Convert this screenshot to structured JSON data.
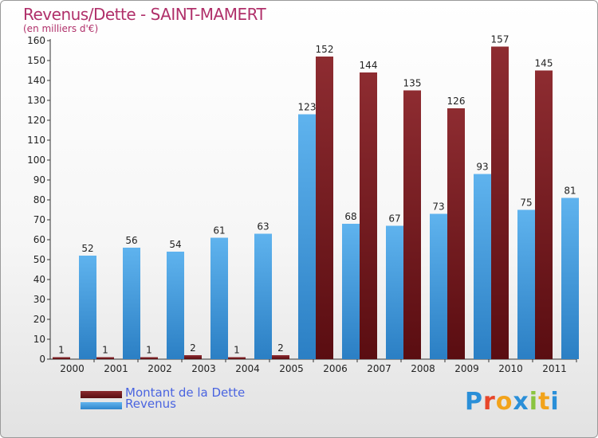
{
  "chart_data": {
    "type": "bar",
    "title": "Revenus/Dette - SAINT-MAMERT",
    "subtitle": "(en milliers d'€)",
    "categories": [
      "2000",
      "2001",
      "2002",
      "2003",
      "2004",
      "2005",
      "2006",
      "2007",
      "2008",
      "2009",
      "2010",
      "2011"
    ],
    "series": [
      {
        "name": "Montant de la Dette",
        "color": "#7a1a1e",
        "values": [
          1,
          1,
          1,
          2,
          1,
          2,
          152,
          144,
          135,
          126,
          157,
          145
        ]
      },
      {
        "name": "Revenus",
        "color": "#4aa2e6",
        "values": [
          52,
          56,
          54,
          61,
          63,
          123,
          68,
          67,
          73,
          93,
          75,
          81
        ]
      }
    ],
    "ylim": [
      0,
      160
    ],
    "yticks": [
      0,
      10,
      20,
      30,
      40,
      50,
      60,
      70,
      80,
      90,
      100,
      110,
      120,
      130,
      140,
      150,
      160
    ],
    "grid": false,
    "legend_position": "bottom-left"
  },
  "logo": {
    "text": "Proxiti",
    "letter_colors": [
      "#2a8fd8",
      "#e8462a",
      "#f2a31b",
      "#2a8fd8",
      "#8ac43f",
      "#f2a31b",
      "#2a8fd8"
    ]
  }
}
